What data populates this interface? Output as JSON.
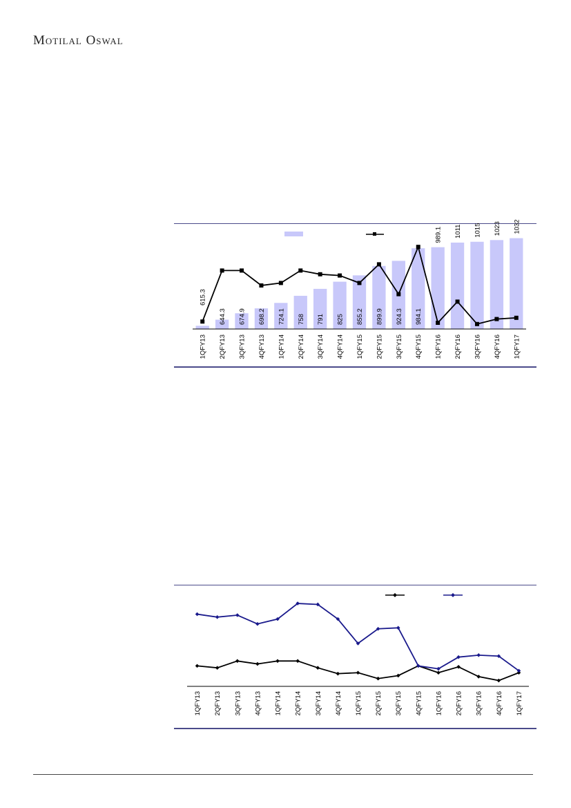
{
  "header": {
    "brand": "Motilal Oswal"
  },
  "chart_data": [
    {
      "type": "bar",
      "title": "",
      "categories": [
        "1QFY13",
        "2QFY13",
        "3QFY13",
        "4QFY13",
        "1QFY14",
        "2QFY14",
        "3QFY14",
        "4QFY14",
        "1QFY15",
        "2QFY15",
        "3QFY15",
        "4QFY15",
        "1QFY16",
        "2QFY16",
        "3QFY16",
        "4QFY16",
        "1QFY17"
      ],
      "series": [
        {
          "type": "bar",
          "color": "#c8c8fa",
          "values": [
            615.3,
            644.3,
            674.9,
            698.2,
            724.1,
            758,
            791,
            825,
            855.2,
            899.9,
            924.3,
            984.1,
            989.1,
            1011,
            1015,
            1023,
            1032
          ],
          "labels": [
            "615.3",
            "644.3",
            "674.9",
            "698.2",
            "724.1",
            "758",
            "791",
            "825",
            "855.2",
            "899.9",
            "924.3",
            "984.1",
            "989.1",
            "1011",
            "1015",
            "1023",
            "1032"
          ]
        },
        {
          "type": "line",
          "color": "#000000",
          "marker": "square",
          "values": [
            0.6,
            4.7,
            4.7,
            3.5,
            3.7,
            4.7,
            4.4,
            4.3,
            3.7,
            5.2,
            2.8,
            6.6,
            0.5,
            2.2,
            0.4,
            0.8,
            0.9
          ]
        }
      ],
      "ylim": [
        600,
        1080
      ],
      "y2lim": [
        0,
        7
      ],
      "legend": "top-center"
    },
    {
      "type": "line",
      "title": "",
      "categories": [
        "1QFY13",
        "2QFY13",
        "3QFY13",
        "4QFY13",
        "1QFY14",
        "2QFY14",
        "3QFY14",
        "4QFY14",
        "1QFY15",
        "2QFY15",
        "3QFY15",
        "4QFY15",
        "1QFY16",
        "2QFY16",
        "3QFY16",
        "4QFY16",
        "1QFY17"
      ],
      "series": [
        {
          "color": "#000000",
          "marker": "diamond",
          "values": [
            7.1,
            6.9,
            7.6,
            7.3,
            7.6,
            7.6,
            6.9,
            6.3,
            6.4,
            5.8,
            6.1,
            7.1,
            6.4,
            7.0,
            6.0,
            5.6,
            6.4
          ]
        },
        {
          "color": "#1a1a8c",
          "marker": "diamond",
          "values": [
            12.4,
            12.1,
            12.3,
            11.4,
            11.9,
            13.5,
            13.4,
            11.9,
            9.4,
            10.9,
            11.0,
            7.1,
            6.8,
            8.0,
            8.2,
            8.1,
            6.6
          ]
        }
      ],
      "ylim": [
        5,
        14
      ],
      "legend": "top-right"
    }
  ]
}
